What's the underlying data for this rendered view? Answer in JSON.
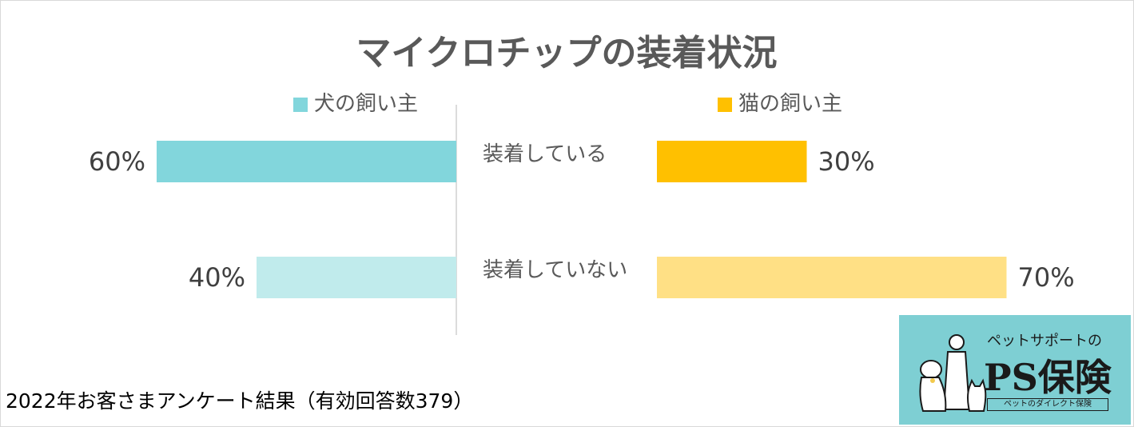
{
  "title": "マイクロチップの装着状況",
  "footnote": "2022年お客さまアンケート結果（有効回答数379）",
  "colors": {
    "dog_main": "#82d6dc",
    "dog_light": "#c0ebec",
    "cat_main": "#ffc000",
    "cat_light": "#ffe085",
    "divider": "#d0d0d0"
  },
  "chart_data": {
    "type": "bar",
    "orientation": "horizontal-butterfly",
    "title": "マイクロチップの装着状況",
    "categories": [
      "装着している",
      "装着していない"
    ],
    "series": [
      {
        "name": "犬の飼い主",
        "side": "left",
        "values": [
          60,
          40
        ],
        "labels": [
          "60%",
          "40%"
        ]
      },
      {
        "name": "猫の飼い主",
        "side": "right",
        "values": [
          30,
          70
        ],
        "labels": [
          "30%",
          "70%"
        ]
      }
    ],
    "unit": "%",
    "xlim": [
      0,
      100
    ],
    "legend": "top"
  },
  "logo": {
    "top_text": "ペットサポートの",
    "main_text": "PS保険",
    "sub_text": "ペットのダイレクト保険",
    "icon": "pets-illustration-icon"
  }
}
